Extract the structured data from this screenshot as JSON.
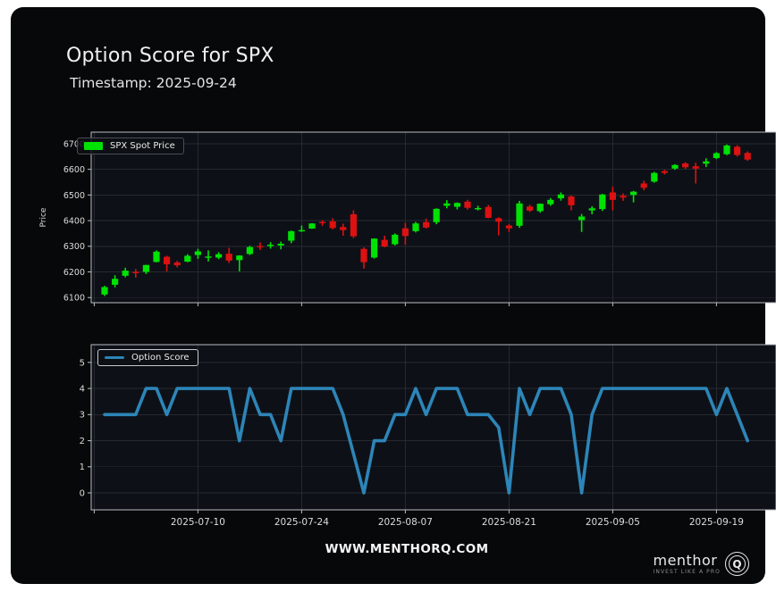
{
  "header": {
    "title": "Option Score for SPX",
    "subtitle": "Timestamp: 2025-09-24"
  },
  "footer": {
    "website": "WWW.MENTHORQ.COM",
    "brand": "menthor",
    "brand_q": "Q",
    "tagline": "INVEST LIKE A PRO"
  },
  "colors": {
    "up": "#00e204",
    "down": "#dd1111",
    "line": "#2d85b8",
    "panel_bg": "#07080a",
    "plot_bg": "#0d1117",
    "grid": "#262a30",
    "spine": "#b9bcc0",
    "text": "#dcdcdc"
  },
  "chart_data": [
    {
      "type": "candlestick",
      "legend": "SPX Spot Price",
      "ylabel": "Price",
      "ylim": [
        6080,
        6745
      ],
      "yticks": [
        6100,
        6200,
        6300,
        6400,
        6500,
        6600,
        6700
      ],
      "grid": true,
      "legend_position": "upper left",
      "dates": [
        "2025-06-26",
        "2025-06-27",
        "2025-06-30",
        "2025-07-01",
        "2025-07-02",
        "2025-07-03",
        "2025-07-07",
        "2025-07-08",
        "2025-07-09",
        "2025-07-10",
        "2025-07-11",
        "2025-07-14",
        "2025-07-15",
        "2025-07-16",
        "2025-07-17",
        "2025-07-18",
        "2025-07-21",
        "2025-07-22",
        "2025-07-23",
        "2025-07-24",
        "2025-07-25",
        "2025-07-28",
        "2025-07-29",
        "2025-07-30",
        "2025-07-31",
        "2025-08-01",
        "2025-08-04",
        "2025-08-05",
        "2025-08-06",
        "2025-08-07",
        "2025-08-08",
        "2025-08-11",
        "2025-08-12",
        "2025-08-13",
        "2025-08-14",
        "2025-08-15",
        "2025-08-18",
        "2025-08-19",
        "2025-08-20",
        "2025-08-21",
        "2025-08-22",
        "2025-08-25",
        "2025-08-26",
        "2025-08-27",
        "2025-08-28",
        "2025-08-29",
        "2025-09-02",
        "2025-09-03",
        "2025-09-04",
        "2025-09-05",
        "2025-09-08",
        "2025-09-09",
        "2025-09-10",
        "2025-09-11",
        "2025-09-12",
        "2025-09-15",
        "2025-09-16",
        "2025-09-17",
        "2025-09-18",
        "2025-09-19",
        "2025-09-22",
        "2025-09-23",
        "2025-09-24"
      ],
      "ohlc": [
        [
          6112,
          6146,
          6106,
          6141
        ],
        [
          6150,
          6187,
          6140,
          6173
        ],
        [
          6185,
          6216,
          6179,
          6205
        ],
        [
          6200,
          6211,
          6178,
          6198
        ],
        [
          6200,
          6228,
          6192,
          6227
        ],
        [
          6239,
          6284,
          6237,
          6279
        ],
        [
          6259,
          6263,
          6202,
          6230
        ],
        [
          6237,
          6243,
          6218,
          6226
        ],
        [
          6240,
          6269,
          6238,
          6263
        ],
        [
          6266,
          6290,
          6251,
          6280
        ],
        [
          6255,
          6284,
          6241,
          6260
        ],
        [
          6256,
          6277,
          6250,
          6269
        ],
        [
          6271,
          6294,
          6235,
          6244
        ],
        [
          6246,
          6265,
          6202,
          6264
        ],
        [
          6270,
          6302,
          6266,
          6297
        ],
        [
          6301,
          6315,
          6286,
          6297
        ],
        [
          6301,
          6316,
          6291,
          6306
        ],
        [
          6303,
          6318,
          6288,
          6310
        ],
        [
          6322,
          6361,
          6312,
          6359
        ],
        [
          6361,
          6381,
          6356,
          6363
        ],
        [
          6369,
          6390,
          6368,
          6389
        ],
        [
          6395,
          6402,
          6380,
          6390
        ],
        [
          6397,
          6409,
          6366,
          6371
        ],
        [
          6375,
          6388,
          6341,
          6363
        ],
        [
          6425,
          6440,
          6332,
          6339
        ],
        [
          6290,
          6296,
          6213,
          6238
        ],
        [
          6256,
          6331,
          6252,
          6330
        ],
        [
          6325,
          6341,
          6296,
          6299
        ],
        [
          6308,
          6350,
          6303,
          6345
        ],
        [
          6370,
          6391,
          6306,
          6340
        ],
        [
          6359,
          6395,
          6354,
          6389
        ],
        [
          6394,
          6408,
          6369,
          6373
        ],
        [
          6394,
          6448,
          6386,
          6446
        ],
        [
          6458,
          6480,
          6448,
          6467
        ],
        [
          6454,
          6471,
          6444,
          6469
        ],
        [
          6474,
          6481,
          6443,
          6450
        ],
        [
          6446,
          6458,
          6440,
          6449
        ],
        [
          6453,
          6461,
          6409,
          6411
        ],
        [
          6409,
          6413,
          6343,
          6396
        ],
        [
          6381,
          6386,
          6356,
          6370
        ],
        [
          6380,
          6477,
          6372,
          6467
        ],
        [
          6455,
          6462,
          6434,
          6439
        ],
        [
          6437,
          6467,
          6431,
          6466
        ],
        [
          6464,
          6488,
          6458,
          6481
        ],
        [
          6487,
          6510,
          6478,
          6502
        ],
        [
          6494,
          6498,
          6440,
          6460
        ],
        [
          6402,
          6426,
          6356,
          6416
        ],
        [
          6440,
          6456,
          6425,
          6448
        ],
        [
          6445,
          6504,
          6438,
          6502
        ],
        [
          6510,
          6532,
          6440,
          6481
        ],
        [
          6497,
          6506,
          6477,
          6490
        ],
        [
          6500,
          6516,
          6471,
          6513
        ],
        [
          6545,
          6556,
          6518,
          6528
        ],
        [
          6552,
          6590,
          6548,
          6586
        ],
        [
          6593,
          6598,
          6580,
          6586
        ],
        [
          6603,
          6620,
          6598,
          6617
        ],
        [
          6623,
          6628,
          6602,
          6608
        ],
        [
          6612,
          6626,
          6545,
          6603
        ],
        [
          6622,
          6643,
          6609,
          6631
        ],
        [
          6644,
          6667,
          6640,
          6663
        ],
        [
          6659,
          6697,
          6655,
          6693
        ],
        [
          6688,
          6694,
          6650,
          6656
        ],
        [
          6664,
          6670,
          6633,
          6638
        ]
      ],
      "xtick_indices": [
        -1,
        9,
        19,
        29,
        39,
        49,
        59
      ],
      "xtick_labels": [
        "",
        "",
        "",
        "",
        "",
        "",
        ""
      ]
    },
    {
      "type": "line",
      "legend": "Option Score",
      "ylim": [
        -0.65,
        5.68
      ],
      "yticks": [
        0,
        1,
        2,
        3,
        4,
        5
      ],
      "grid": true,
      "legend_position": "upper left",
      "values": [
        3,
        3,
        3,
        3,
        4,
        4,
        3,
        4,
        4,
        4,
        4,
        4,
        4,
        2,
        4,
        3,
        3,
        2,
        4,
        4,
        4,
        4,
        4,
        3,
        1.5,
        0,
        2,
        2,
        3,
        3,
        4,
        3,
        4,
        4,
        4,
        3,
        3,
        3,
        2.5,
        0,
        4,
        3,
        4,
        4,
        4,
        3,
        0,
        3,
        4,
        4,
        4,
        4,
        4,
        4,
        4,
        4,
        4,
        4,
        4,
        3,
        4,
        3,
        2
      ],
      "xtick_indices": [
        -1,
        9,
        19,
        29,
        39,
        49,
        59
      ],
      "xtick_labels": [
        "",
        "2025-07-10",
        "2025-07-24",
        "2025-08-07",
        "2025-08-21",
        "2025-09-05",
        "2025-09-19"
      ]
    }
  ]
}
